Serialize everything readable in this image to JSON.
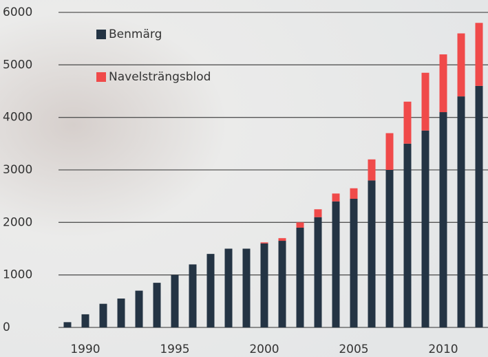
{
  "chart_data": {
    "type": "stacked-bar",
    "x": [
      1989,
      1990,
      1991,
      1992,
      1993,
      1994,
      1995,
      1996,
      1997,
      1998,
      1999,
      2000,
      2001,
      2002,
      2003,
      2004,
      2005,
      2006,
      2007,
      2008,
      2009,
      2010,
      2011,
      2012
    ],
    "series": [
      {
        "name": "Benmärg",
        "color": "#243444",
        "values": [
          100,
          250,
          450,
          550,
          700,
          850,
          1000,
          1200,
          1400,
          1500,
          1500,
          1600,
          1650,
          1900,
          2100,
          2400,
          2450,
          2800,
          3000,
          3500,
          3750,
          4100,
          4400,
          4600
        ]
      },
      {
        "name": "Navelsträngsblod",
        "color": "#f04a4a",
        "values": [
          0,
          0,
          0,
          0,
          0,
          0,
          0,
          0,
          0,
          0,
          0,
          20,
          50,
          100,
          150,
          150,
          200,
          400,
          700,
          800,
          1100,
          1100,
          1200,
          1200
        ]
      }
    ],
    "xlim": [
      1988.5,
      2012.5
    ],
    "xticks": [
      1990,
      1995,
      2000,
      2005,
      2010
    ],
    "ylim": [
      0,
      6000
    ],
    "yticks": [
      0,
      1000,
      2000,
      3000,
      4000,
      5000,
      6000
    ],
    "grid": true,
    "legend": "upper-left"
  }
}
